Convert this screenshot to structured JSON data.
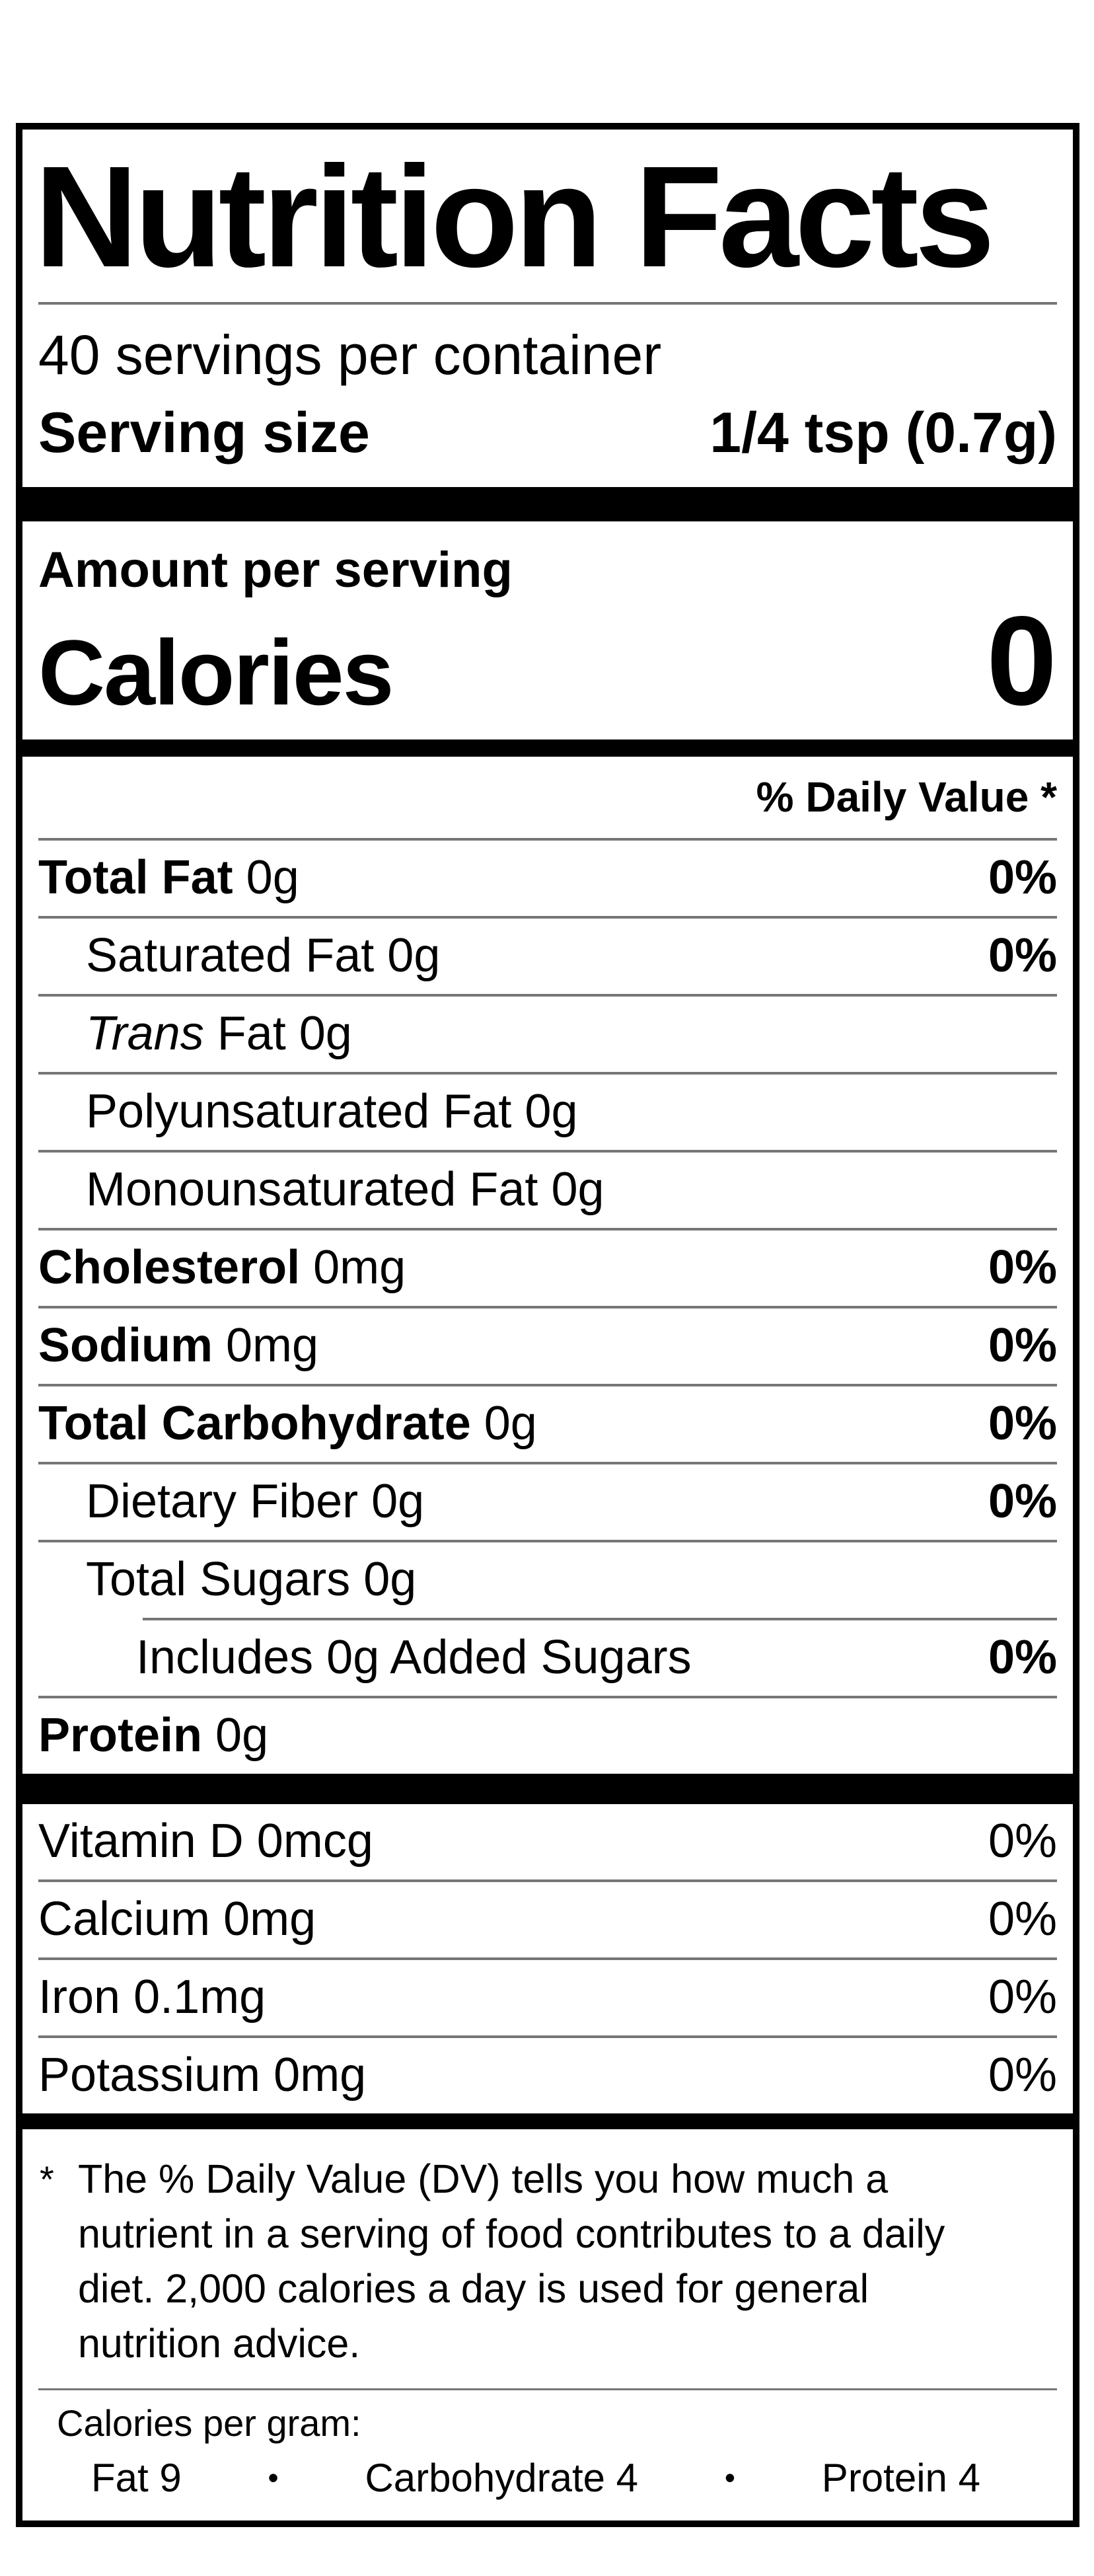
{
  "label": {
    "title": "Nutrition Facts",
    "servings_per_container": "40 servings per container",
    "serving_size": {
      "label": "Serving size",
      "value": "1/4 tsp (0.7g)"
    },
    "amount_per_serving": "Amount per serving",
    "calories": {
      "label": "Calories",
      "value": "0"
    },
    "daily_value_header": "% Daily Value *",
    "nutrients": [
      {
        "name": "Total Fat",
        "amount": "0g",
        "dv": "0%"
      },
      {
        "name": "Saturated Fat",
        "amount": "0g",
        "dv": "0%"
      },
      {
        "name_italic": "Trans",
        "name": "Fat",
        "amount": "0g",
        "dv": ""
      },
      {
        "name": "Polyunsaturated Fat",
        "amount": "0g",
        "dv": ""
      },
      {
        "name": "Monounsaturated Fat",
        "amount": "0g",
        "dv": ""
      },
      {
        "name": "Cholesterol",
        "amount": "0mg",
        "dv": "0%"
      },
      {
        "name": "Sodium",
        "amount": "0mg",
        "dv": "0%"
      },
      {
        "name": "Total Carbohydrate",
        "amount": "0g",
        "dv": "0%"
      },
      {
        "name": "Dietary Fiber",
        "amount": "0g",
        "dv": "0%"
      },
      {
        "name": "Total Sugars",
        "amount": "0g",
        "dv": ""
      },
      {
        "name": "Includes 0g Added Sugars",
        "amount": "",
        "dv": "0%"
      },
      {
        "name": "Protein",
        "amount": "0g",
        "dv": ""
      }
    ],
    "vitamins": [
      {
        "name": "Vitamin D",
        "amount": "0mcg",
        "dv": "0%"
      },
      {
        "name": "Calcium",
        "amount": "0mg",
        "dv": "0%"
      },
      {
        "name": "Iron",
        "amount": "0.1mg",
        "dv": "0%"
      },
      {
        "name": "Potassium",
        "amount": "0mg",
        "dv": "0%"
      }
    ],
    "footnote": {
      "marker": "*",
      "text": "The % Daily Value (DV) tells you how much a nutrient in a serving of food contributes to a daily diet. 2,000 calories a day is used for general nutrition advice."
    },
    "calories_per_gram": {
      "heading": "Calories per gram:",
      "bullet": "•",
      "items": [
        "Fat 9",
        "Carbohydrate 4",
        "Protein 4"
      ]
    }
  }
}
